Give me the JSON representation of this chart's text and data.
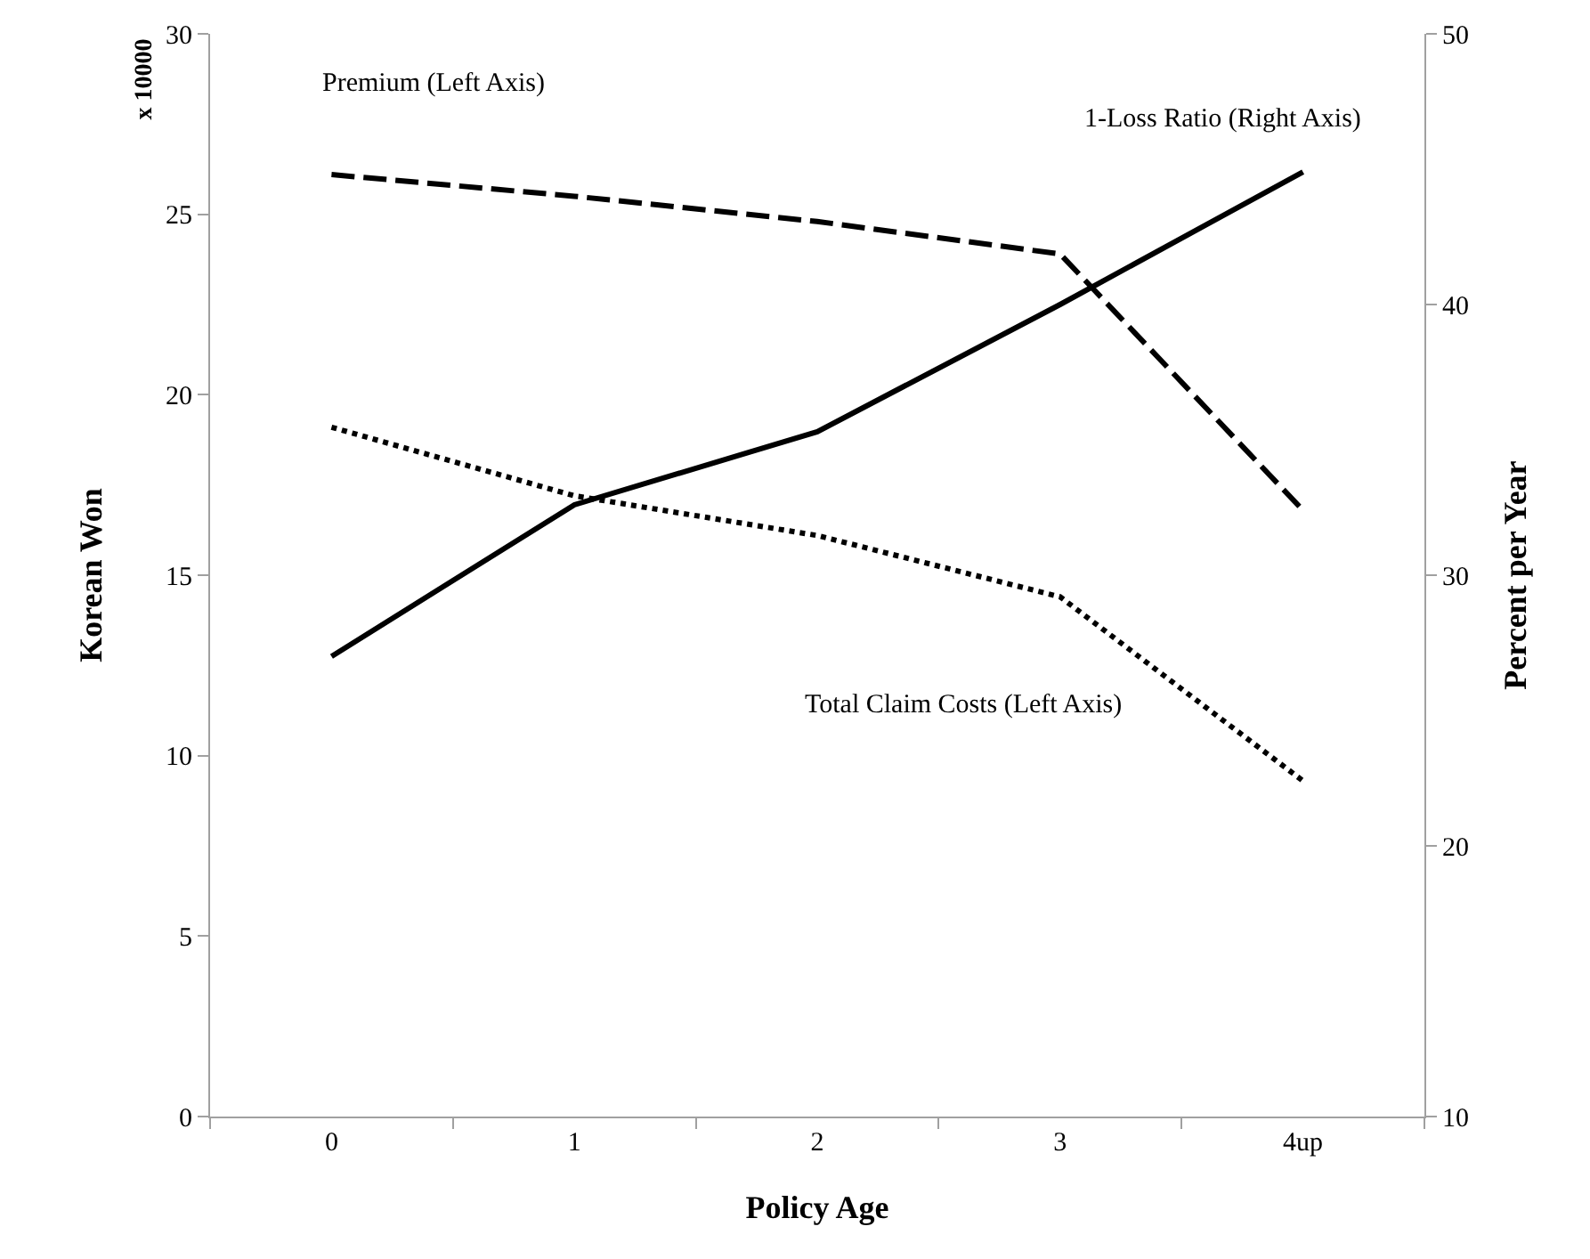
{
  "chart_data": {
    "type": "line",
    "xlabel": "Policy Age",
    "ylabel": "Korean Won",
    "y2label": "Percent per Year",
    "categories": [
      "0",
      "1",
      "2",
      "3",
      "4up"
    ],
    "series": [
      {
        "name": "Premium (Left Axis)",
        "color": "#000000",
        "line_style": "dashed",
        "values": [
          26.1,
          25.5,
          24.8,
          23.9,
          16.8
        ]
      },
      {
        "name": "1-Loss Ratio (Right Axis)",
        "color": "#000000",
        "line_style": "solid",
        "axis": "y2",
        "values": [
          27.0,
          32.6,
          35.3,
          40.0,
          44.9
        ]
      },
      {
        "name": "Total Claim Costs (Left Axis)",
        "color": "#000000",
        "line_style": "dotted",
        "values": [
          19.1,
          17.2,
          16.1,
          14.4,
          9.3
        ]
      }
    ],
    "annotations": [
      "x 10000"
    ],
    "ylim": [
      0,
      30
    ],
    "yticks": [
      0,
      5,
      10,
      15,
      20,
      25,
      30
    ],
    "y2lim": [
      10,
      50
    ],
    "y2ticks": [
      10,
      20,
      30,
      40,
      50
    ],
    "legend": false,
    "marker": "none"
  }
}
